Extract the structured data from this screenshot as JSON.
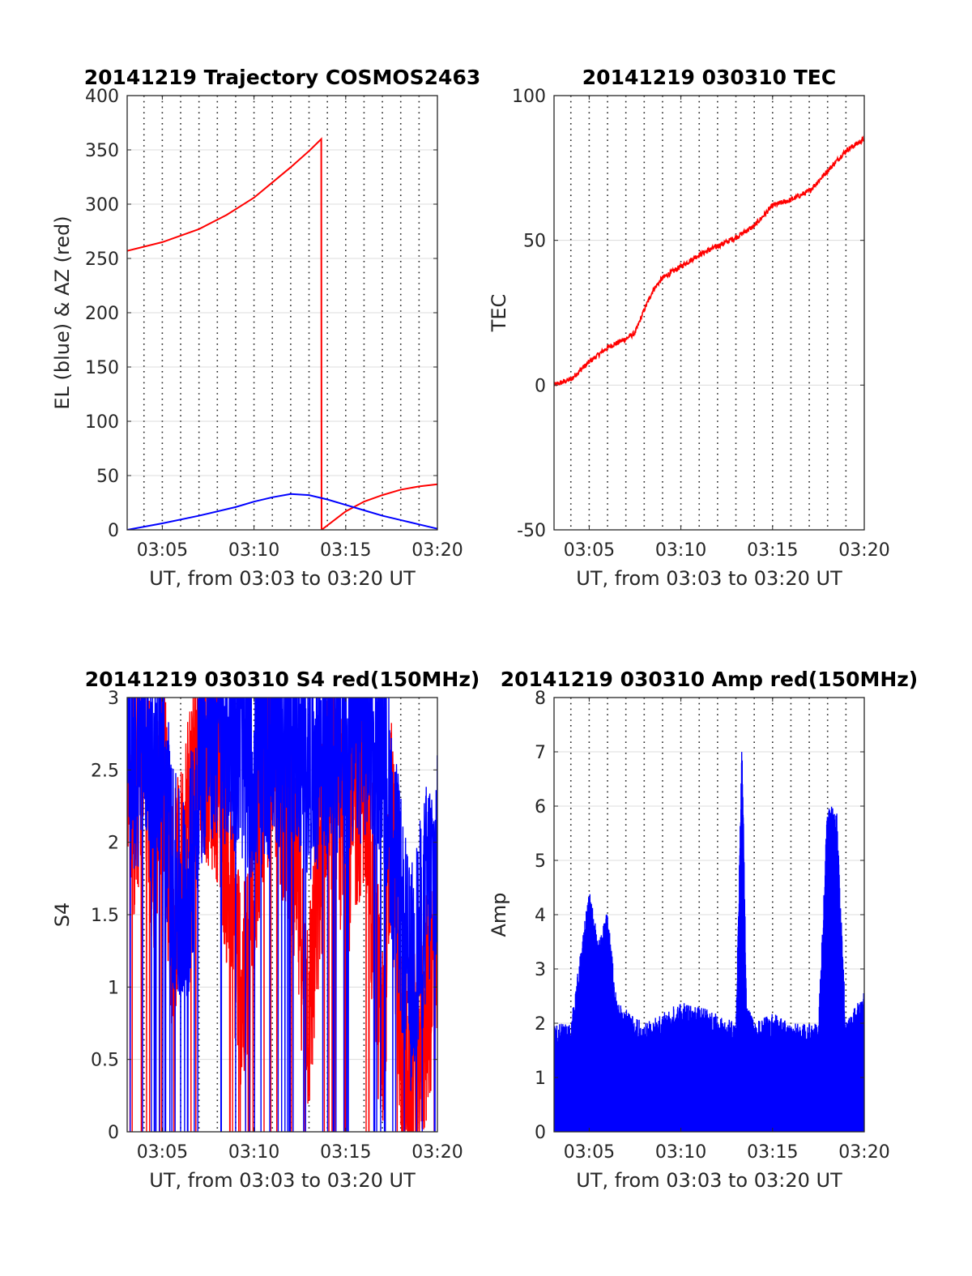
{
  "figure": {
    "xlabel": "UT, from 03:03 to 03:20 UT",
    "xticks": [
      "03:05",
      "03:10",
      "03:15",
      "03:20"
    ],
    "xlim_minutes": [
      3.0833,
      20.0
    ],
    "dotted_grid_minutes": [
      4,
      5,
      6,
      7,
      8,
      9,
      10,
      11,
      12,
      13,
      14,
      15,
      16,
      17,
      18,
      19
    ],
    "colors": {
      "red": "#ff0000",
      "blue": "#0000ff",
      "grid": "#dcdcdc",
      "axis": "#262626"
    }
  },
  "chart_data": [
    {
      "type": "line",
      "title": "20141219 Trajectory COSMOS2463",
      "xlabel": "UT, from 03:03 to 03:20 UT",
      "ylabel": "EL (blue) & AZ (red)",
      "ylim": [
        0,
        400
      ],
      "yticks": [
        0,
        50,
        100,
        150,
        200,
        250,
        300,
        350,
        400
      ],
      "grid": true,
      "series": [
        {
          "color": "#ff0000",
          "x": [
            "03:03:05",
            "03:05",
            "03:07",
            "03:08:30",
            "03:10",
            "03:11",
            "03:12",
            "03:13",
            "03:13:40",
            "03:13:41",
            "03:15",
            "03:16",
            "03:17",
            "03:18",
            "03:19",
            "03:20"
          ],
          "values": [
            257,
            265,
            277,
            290,
            306,
            320,
            334,
            349,
            360,
            0,
            17,
            26,
            32,
            37,
            40,
            42
          ]
        },
        {
          "color": "#0000ff",
          "x": [
            "03:03:05",
            "03:05",
            "03:07",
            "03:09",
            "03:10",
            "03:11",
            "03:12",
            "03:13",
            "03:14",
            "03:15",
            "03:16",
            "03:17",
            "03:18",
            "03:19",
            "03:20"
          ],
          "values": [
            0,
            6,
            13,
            21,
            26,
            30,
            33,
            32,
            28,
            23,
            18,
            13,
            9,
            5,
            1
          ]
        }
      ]
    },
    {
      "type": "line",
      "title": "20141219 030310 TEC",
      "xlabel": "UT, from 03:03 to 03:20 UT",
      "ylabel": "TEC",
      "ylim": [
        -50,
        100
      ],
      "yticks": [
        -50,
        0,
        50,
        100
      ],
      "grid": true,
      "series": [
        {
          "color": "#ff0000",
          "x": [
            "03:03:05",
            "03:04",
            "03:05",
            "03:06",
            "03:07",
            "03:07:30",
            "03:08",
            "03:08:30",
            "03:09",
            "03:10",
            "03:11",
            "03:12",
            "03:13",
            "03:14",
            "03:15",
            "03:16",
            "03:17",
            "03:18",
            "03:19",
            "03:20"
          ],
          "values": [
            0,
            2,
            8,
            13,
            16,
            18,
            26,
            33,
            37,
            41,
            45,
            48,
            51,
            55,
            62,
            64,
            67,
            74,
            81,
            85
          ]
        }
      ]
    },
    {
      "type": "line",
      "title": "20141219 030310 S4 red(150MHz)",
      "xlabel": "UT, from 03:03 to 03:20 UT",
      "ylabel": "S4",
      "ylim": [
        0,
        3
      ],
      "yticks": [
        "0",
        "0.5",
        "1",
        "1.5",
        "2",
        "2.5",
        "3"
      ],
      "grid": true,
      "series": [
        {
          "color": "#ff0000",
          "x": [
            "03:03:05",
            "03:03:30",
            "03:04",
            "03:04:30",
            "03:05",
            "03:05:30",
            "03:06",
            "03:06:30",
            "03:07",
            "03:08",
            "03:09",
            "03:09:30",
            "03:10",
            "03:10:30",
            "03:11",
            "03:12",
            "03:13",
            "03:13:30",
            "03:14",
            "03:15",
            "03:16",
            "03:17",
            "03:17:30",
            "03:18",
            "03:18:30",
            "03:19",
            "03:20"
          ],
          "values": [
            2.5,
            1.8,
            2.6,
            1.5,
            2.3,
            1.2,
            1.4,
            2.0,
            2.4,
            2.2,
            1.0,
            0.6,
            1.5,
            2.2,
            2.4,
            1.8,
            0.5,
            1.3,
            2.3,
            1.6,
            2.2,
            0.2,
            1.9,
            0.3,
            0.1,
            0.2,
            1.0
          ]
        },
        {
          "color": "#0000ff",
          "x": [
            "03:03:05",
            "03:03:30",
            "03:04",
            "03:04:30",
            "03:05",
            "03:05:30",
            "03:06",
            "03:06:30",
            "03:07",
            "03:08",
            "03:09",
            "03:10",
            "03:11",
            "03:12",
            "03:13",
            "03:14",
            "03:15",
            "03:16",
            "03:17",
            "03:17:30",
            "03:18",
            "03:18:30",
            "03:19",
            "03:19:30",
            "03:20"
          ],
          "values": [
            2.4,
            2.2,
            2.5,
            2.1,
            2.3,
            1.5,
            1.2,
            1.4,
            2.3,
            2.5,
            2.4,
            2.2,
            2.4,
            2.5,
            2.2,
            2.4,
            2.3,
            2.5,
            2.4,
            1.8,
            1.2,
            0.7,
            1.0,
            1.4,
            1.5
          ]
        }
      ]
    },
    {
      "type": "line",
      "title": "20141219 030310 Amp red(150MHz)",
      "xlabel": "UT, from 03:03 to 03:20 UT",
      "ylabel": "Amp",
      "ylim": [
        0,
        8
      ],
      "yticks": [
        0,
        1,
        2,
        3,
        4,
        5,
        6,
        7,
        8
      ],
      "grid": true,
      "series": [
        {
          "color": "#0000ff",
          "x": [
            "03:03:05",
            "03:04",
            "03:05",
            "03:05:30",
            "03:06",
            "03:06:30",
            "03:08",
            "03:10",
            "03:12",
            "03:13",
            "03:13:20",
            "03:13:35",
            "03:14",
            "03:15",
            "03:16",
            "03:17",
            "03:17:30",
            "03:18",
            "03:18:30",
            "03:19",
            "03:20"
          ],
          "values": [
            2.0,
            2.0,
            4.5,
            3.5,
            4.1,
            2.4,
            2.0,
            2.4,
            2.2,
            2.0,
            7.3,
            2.4,
            2.0,
            2.2,
            2.0,
            2.0,
            2.0,
            6.1,
            5.9,
            2.0,
            2.6
          ]
        }
      ]
    }
  ]
}
